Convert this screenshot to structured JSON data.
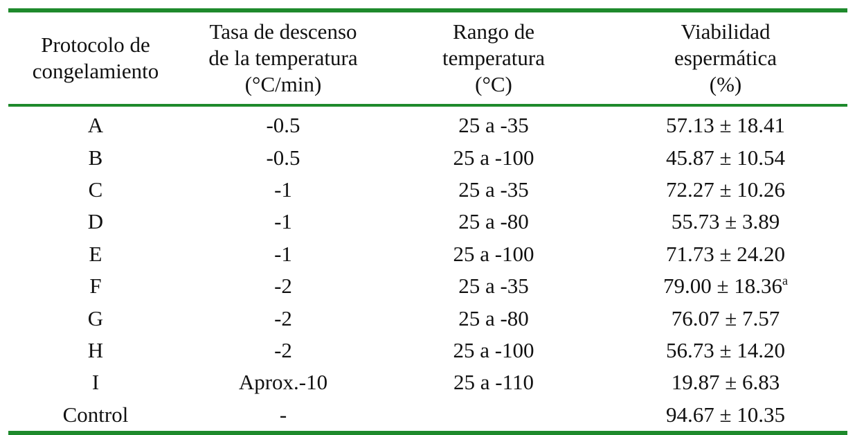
{
  "table": {
    "headers": [
      "Protocolo de\ncongelamiento",
      "Tasa de descenso\nde la temperatura\n(°C/min)",
      "Rango de\ntemperatura\n(°C)",
      "Viabilidad\nespermática\n(%)"
    ],
    "rows": [
      {
        "protocol": "A",
        "rate": "-0.5",
        "range": "25 a -35",
        "viability": "57.13 ± 18.41",
        "sup": ""
      },
      {
        "protocol": "B",
        "rate": "-0.5",
        "range": "25 a -100",
        "viability": "45.87 ± 10.54",
        "sup": ""
      },
      {
        "protocol": "C",
        "rate": "-1",
        "range": "25 a -35",
        "viability": "72.27 ± 10.26",
        "sup": ""
      },
      {
        "protocol": "D",
        "rate": "-1",
        "range": "25 a -80",
        "viability": "55.73 ± 3.89",
        "sup": ""
      },
      {
        "protocol": "E",
        "rate": "-1",
        "range": "25 a -100",
        "viability": "71.73 ± 24.20",
        "sup": ""
      },
      {
        "protocol": "F",
        "rate": "-2",
        "range": "25 a -35",
        "viability": "79.00 ± 18.36",
        "sup": "a"
      },
      {
        "protocol": "G",
        "rate": "-2",
        "range": "25 a -80",
        "viability": "76.07 ± 7.57",
        "sup": ""
      },
      {
        "protocol": "H",
        "rate": "-2",
        "range": "25 a -100",
        "viability": "56.73 ± 14.20",
        "sup": ""
      },
      {
        "protocol": "I",
        "rate": "Aprox.-10",
        "range": "25 a -110",
        "viability": "19.87 ± 6.83",
        "sup": ""
      },
      {
        "protocol": "Control",
        "rate": "-",
        "range": "",
        "viability": "94.67 ± 10.35",
        "sup": ""
      }
    ]
  },
  "colors": {
    "rule": "#1e8a2c",
    "text": "#111111",
    "background": "#ffffff"
  }
}
